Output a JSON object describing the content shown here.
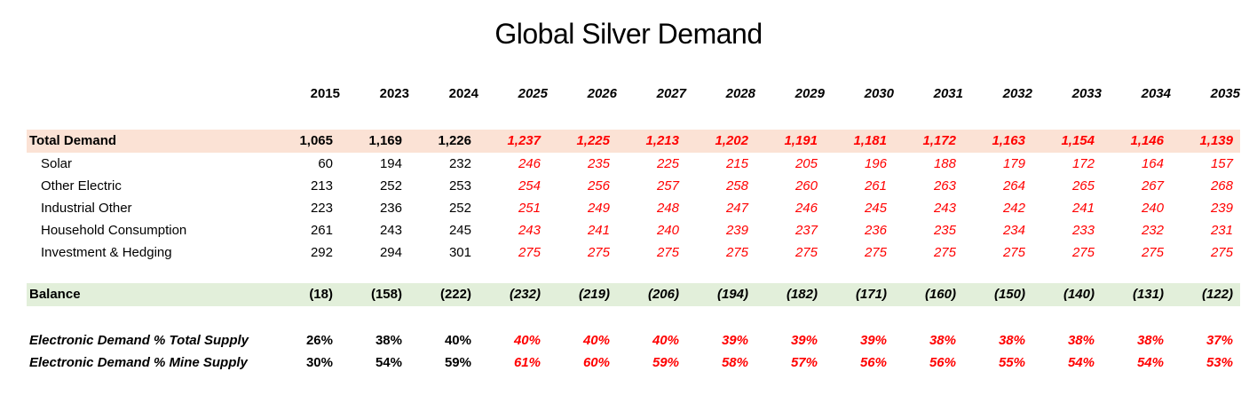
{
  "title": "Global Silver Demand",
  "colors": {
    "demand_highlight": "#fbe2d5",
    "balance_highlight": "#e2efda",
    "forecast_text": "#ff0000",
    "historical_text": "#000000"
  },
  "chart_data": {
    "type": "table",
    "title": "Global Silver Demand",
    "columns": [
      "2015",
      "2023",
      "2024",
      "2025",
      "2026",
      "2027",
      "2028",
      "2029",
      "2030",
      "2031",
      "2032",
      "2033",
      "2034",
      "2035"
    ],
    "historical_columns": [
      "2015",
      "2023",
      "2024"
    ],
    "forecast_columns": [
      "2025",
      "2026",
      "2027",
      "2028",
      "2029",
      "2030",
      "2031",
      "2032",
      "2033",
      "2034",
      "2035"
    ],
    "rows": [
      {
        "label": "Total Demand",
        "style": "total",
        "values": [
          "1,065",
          "1,169",
          "1,226",
          "1,237",
          "1,225",
          "1,213",
          "1,202",
          "1,191",
          "1,181",
          "1,172",
          "1,163",
          "1,154",
          "1,146",
          "1,139"
        ]
      },
      {
        "label": "Solar",
        "style": "detail",
        "values": [
          "60",
          "194",
          "232",
          "246",
          "235",
          "225",
          "215",
          "205",
          "196",
          "188",
          "179",
          "172",
          "164",
          "157"
        ]
      },
      {
        "label": "Other Electric",
        "style": "detail",
        "values": [
          "213",
          "252",
          "253",
          "254",
          "256",
          "257",
          "258",
          "260",
          "261",
          "263",
          "264",
          "265",
          "267",
          "268"
        ]
      },
      {
        "label": "Industrial Other",
        "style": "detail",
        "values": [
          "223",
          "236",
          "252",
          "251",
          "249",
          "248",
          "247",
          "246",
          "245",
          "243",
          "242",
          "241",
          "240",
          "239"
        ]
      },
      {
        "label": "Household Consumption",
        "style": "detail",
        "values": [
          "261",
          "243",
          "245",
          "243",
          "241",
          "240",
          "239",
          "237",
          "236",
          "235",
          "234",
          "233",
          "232",
          "231"
        ]
      },
      {
        "label": "Investment & Hedging",
        "style": "detail",
        "values": [
          "292",
          "294",
          "301",
          "275",
          "275",
          "275",
          "275",
          "275",
          "275",
          "275",
          "275",
          "275",
          "275",
          "275"
        ]
      },
      {
        "label": "Balance",
        "style": "balance",
        "values": [
          "(18)",
          "(158)",
          "(222)",
          "(232)",
          "(219)",
          "(206)",
          "(194)",
          "(182)",
          "(171)",
          "(160)",
          "(150)",
          "(140)",
          "(131)",
          "(122)"
        ]
      },
      {
        "label": "Electronic Demand % Total Supply",
        "style": "percent",
        "values": [
          "26%",
          "38%",
          "40%",
          "40%",
          "40%",
          "40%",
          "39%",
          "39%",
          "39%",
          "38%",
          "38%",
          "38%",
          "38%",
          "37%"
        ]
      },
      {
        "label": "Electronic Demand % Mine Supply",
        "style": "percent",
        "values": [
          "30%",
          "54%",
          "59%",
          "61%",
          "60%",
          "59%",
          "58%",
          "57%",
          "56%",
          "56%",
          "55%",
          "54%",
          "54%",
          "53%"
        ]
      }
    ]
  }
}
